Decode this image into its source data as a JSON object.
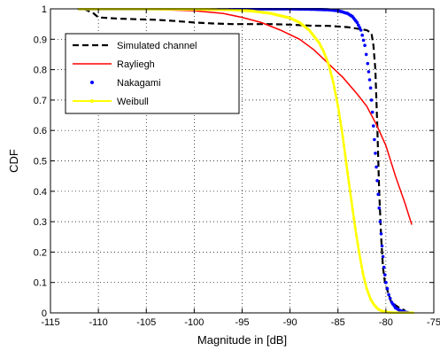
{
  "chart_data": {
    "type": "line",
    "title": "",
    "xlabel": "Magnitude in [dB]",
    "ylabel": "CDF",
    "xlim": [
      -115,
      -75
    ],
    "ylim": [
      0,
      1
    ],
    "xticks": [
      -115,
      -110,
      -105,
      -100,
      -95,
      -90,
      -85,
      -80,
      -75
    ],
    "xtick_labels": [
      "-115",
      "-110",
      "-105",
      "-100",
      "-95",
      "-90",
      "-85",
      "-80",
      "-75"
    ],
    "yticks": [
      0,
      0.1,
      0.2,
      0.3,
      0.4,
      0.5,
      0.6,
      0.7,
      0.8,
      0.9,
      1
    ],
    "ytick_labels": [
      "0",
      "0.1",
      "0.2",
      "0.3",
      "0.4",
      "0.5",
      "0.6",
      "0.7",
      "0.8",
      "0.9",
      "1"
    ],
    "grid": true,
    "legend_position": "top-left",
    "series": [
      {
        "name": "Simulated channel",
        "color": "#000000",
        "style": "dashed",
        "x": [
          -111.5,
          -110.5,
          -110,
          -108,
          -106,
          -104,
          -102,
          -100,
          -98,
          -96,
          -94,
          -92,
          -90,
          -88,
          -86,
          -84,
          -83,
          -82,
          -81.5,
          -81.3,
          -81.1,
          -80.9,
          -80.7,
          -80.5,
          -80.3,
          -80.1,
          -79.8,
          -79.5,
          -79,
          -78.5,
          -78
        ],
        "y": [
          1.0,
          0.985,
          0.972,
          0.968,
          0.966,
          0.964,
          0.96,
          0.955,
          0.952,
          0.95,
          0.95,
          0.95,
          0.948,
          0.945,
          0.944,
          0.94,
          0.935,
          0.93,
          0.92,
          0.88,
          0.8,
          0.62,
          0.4,
          0.25,
          0.15,
          0.1,
          0.07,
          0.04,
          0.025,
          0.015,
          0.008
        ]
      },
      {
        "name": "Rayliegh",
        "color": "#ff0000",
        "style": "solid",
        "x": [
          -112,
          -108,
          -104,
          -100,
          -97,
          -95,
          -93,
          -91,
          -89,
          -87.5,
          -86,
          -84.5,
          -83,
          -82,
          -81,
          -80,
          -79,
          -78,
          -77.3
        ],
        "y": [
          1.0,
          1.0,
          0.998,
          0.994,
          0.985,
          0.972,
          0.955,
          0.93,
          0.9,
          0.865,
          0.82,
          0.775,
          0.72,
          0.68,
          0.62,
          0.55,
          0.45,
          0.36,
          0.29
        ]
      },
      {
        "name": "Nakagami",
        "color": "#0000ff",
        "style": "dots",
        "x": [
          -112,
          -106,
          -100,
          -95,
          -92,
          -90,
          -88,
          -86,
          -85,
          -84,
          -83.5,
          -83,
          -82.6,
          -82.2,
          -81.9,
          -81.6,
          -81.4,
          -81.2,
          -81,
          -80.8,
          -80.6,
          -80.4,
          -80.2,
          -80,
          -79.7,
          -79.4,
          -79,
          -78.5,
          -78,
          -77.6
        ],
        "y": [
          1.0,
          1.0,
          1.0,
          1.0,
          1.0,
          1.0,
          0.999,
          0.997,
          0.994,
          0.985,
          0.975,
          0.955,
          0.93,
          0.88,
          0.82,
          0.74,
          0.66,
          0.57,
          0.48,
          0.39,
          0.3,
          0.22,
          0.15,
          0.1,
          0.06,
          0.035,
          0.017,
          0.007,
          0.003,
          0.0
        ]
      },
      {
        "name": "Weibull",
        "color": "#ffff00",
        "style": "solid-dots",
        "x": [
          -112,
          -106,
          -100,
          -96,
          -94,
          -92,
          -90,
          -89,
          -88,
          -87,
          -86.5,
          -86,
          -85.5,
          -85,
          -84.5,
          -84,
          -83.6,
          -83.2,
          -82.8,
          -82.4,
          -82,
          -81.6,
          -81.2,
          -80.8,
          -80.4,
          -80,
          -79.5,
          -78.8,
          -78,
          -77.2
        ],
        "y": [
          1.0,
          1.0,
          0.999,
          0.997,
          0.993,
          0.985,
          0.97,
          0.955,
          0.93,
          0.89,
          0.86,
          0.82,
          0.76,
          0.68,
          0.58,
          0.46,
          0.37,
          0.28,
          0.2,
          0.13,
          0.08,
          0.045,
          0.025,
          0.012,
          0.006,
          0.003,
          0.001,
          0.0,
          0.0,
          0.0
        ]
      }
    ]
  }
}
